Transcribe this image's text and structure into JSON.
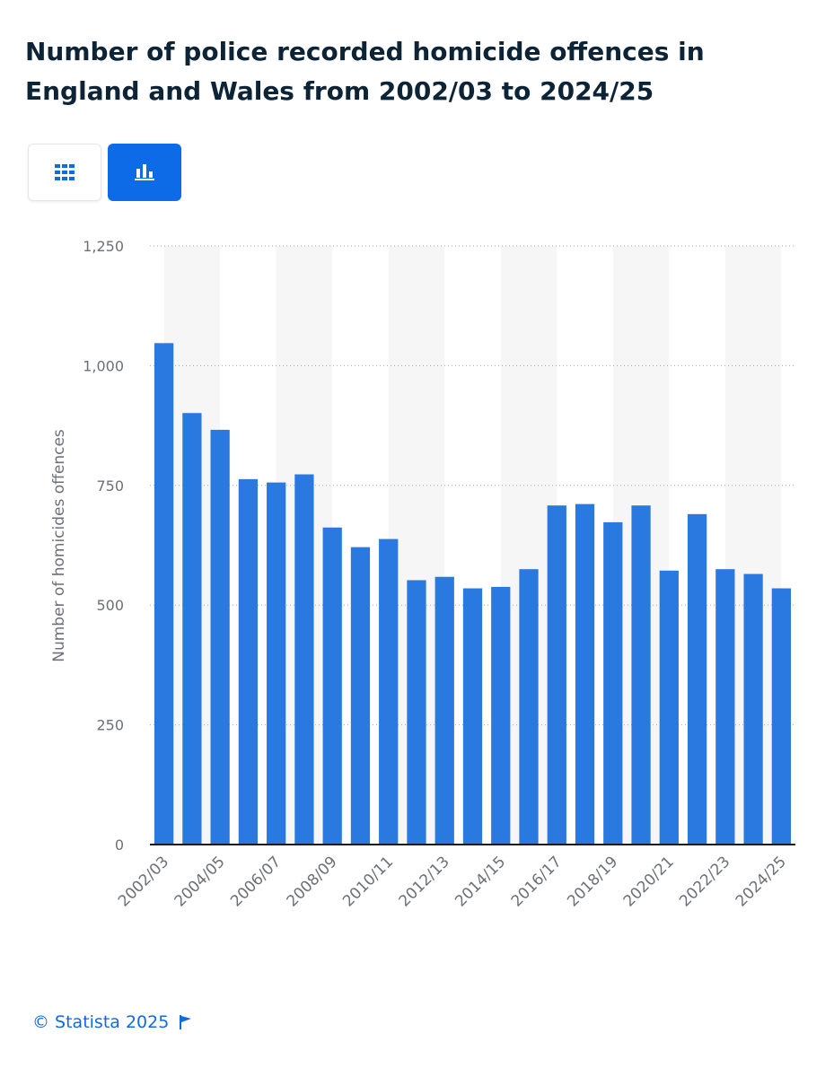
{
  "title": "Number of police recorded homicide offences in England and Wales from 2002/03 to 2024/25",
  "view_toggle": {
    "table_icon": "grid-icon",
    "chart_icon": "bar-chart-icon",
    "active": "chart"
  },
  "colors": {
    "bar": "#2a79e0",
    "accent": "#0e6be8",
    "title": "#0d2436",
    "band": "#f6f6f6"
  },
  "chart_data": {
    "type": "bar",
    "title": "Number of police recorded homicide offences in England and Wales from 2002/03 to 2024/25",
    "xlabel": "",
    "ylabel": "Number of homicides offences",
    "ylim": [
      0,
      1250
    ],
    "yticks": [
      0,
      250,
      500,
      750,
      1000,
      1250
    ],
    "ytick_labels": [
      "0",
      "250",
      "500",
      "750",
      "1,000",
      "1,250"
    ],
    "grid": true,
    "categories": [
      "2002/03",
      "2003/04",
      "2004/05",
      "2005/06",
      "2006/07",
      "2007/08",
      "2008/09",
      "2009/10",
      "2010/11",
      "2011/12",
      "2012/13",
      "2013/14",
      "2014/15",
      "2015/16",
      "2016/17",
      "2017/18",
      "2018/19",
      "2019/20",
      "2020/21",
      "2021/22",
      "2022/23",
      "2023/24",
      "2024/25"
    ],
    "x_tick_labels": [
      "2002/03",
      "2004/05",
      "2006/07",
      "2008/09",
      "2010/11",
      "2012/13",
      "2014/15",
      "2016/17",
      "2018/19",
      "2020/21",
      "2022/23",
      "2024/25"
    ],
    "values": [
      1047,
      901,
      866,
      763,
      756,
      773,
      662,
      621,
      638,
      552,
      559,
      535,
      538,
      575,
      708,
      711,
      673,
      708,
      572,
      690,
      575,
      565,
      535
    ]
  },
  "footer": {
    "copyright": "© Statista 2025",
    "flag_icon": "flag-icon"
  }
}
